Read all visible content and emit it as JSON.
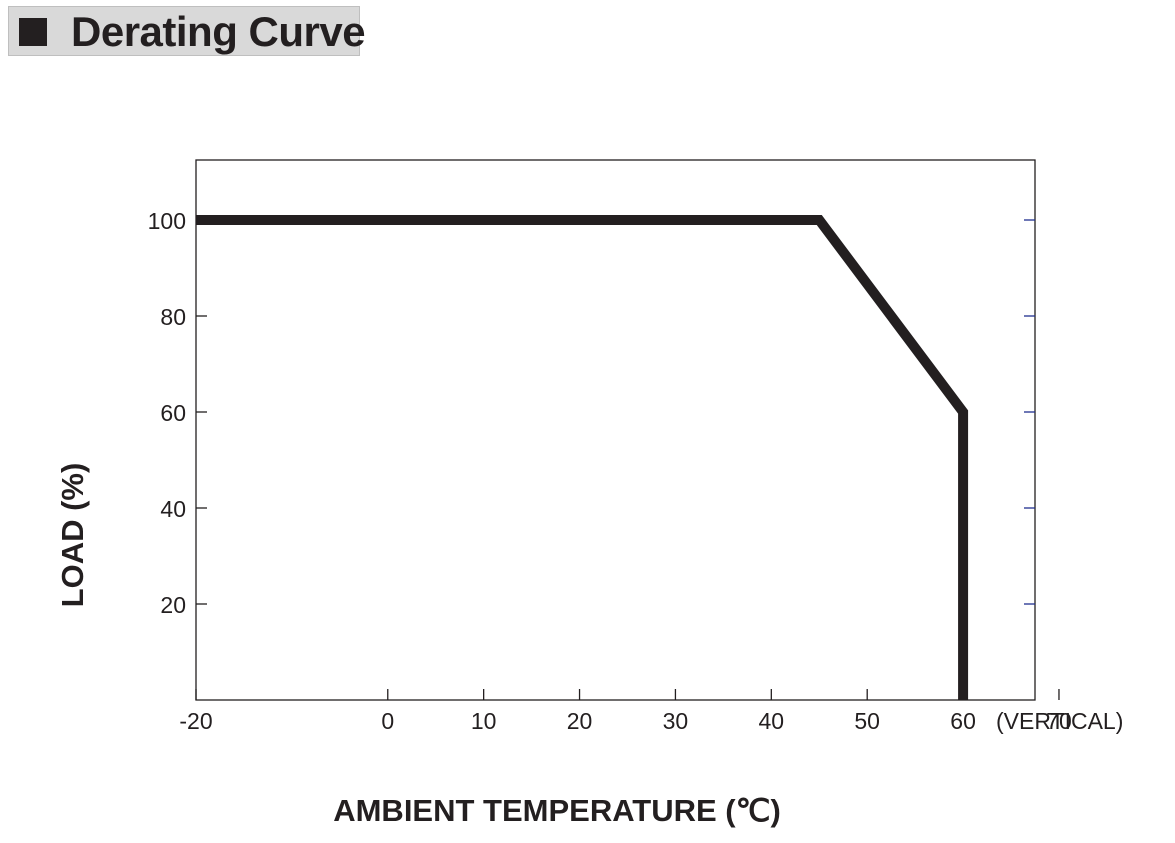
{
  "header": {
    "title": "Derating Curve"
  },
  "chart_data": {
    "type": "line",
    "title": "Derating Curve",
    "xlabel": "AMBIENT TEMPERATURE (℃)",
    "ylabel": "LOAD (%)",
    "x_axis_note": "(VERTICAL)",
    "xlim": [
      -20,
      67.5
    ],
    "ylim": [
      0,
      112.5
    ],
    "x_ticks": [
      -20,
      0,
      10,
      20,
      30,
      40,
      50,
      60,
      70
    ],
    "y_ticks": [
      20,
      40,
      60,
      80,
      100
    ],
    "grid": false,
    "series": [
      {
        "x": [
          -20,
          45,
          60,
          60
        ],
        "y": [
          100,
          100,
          60,
          0
        ]
      }
    ],
    "colors": {
      "curve": "#231f20",
      "right_ticks": "#1f2f8f"
    }
  }
}
